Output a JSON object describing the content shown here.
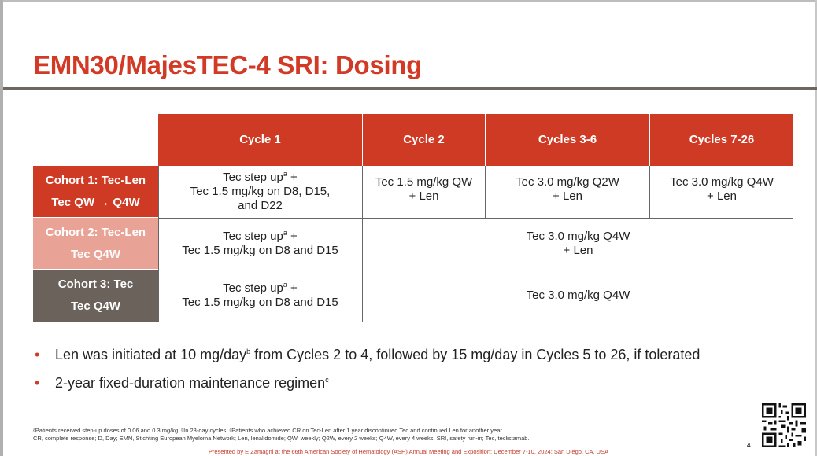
{
  "title": "EMN30/MajesTEC-4 SRI: Dosing",
  "table": {
    "headers": [
      "Cycle 1",
      "Cycle 2",
      "Cycles 3-6",
      "Cycles 7-26"
    ],
    "rows": [
      {
        "label_line1": "Cohort 1: Tec-Len",
        "label_line2": "Tec QW → Q4W",
        "color": "#cf3a24",
        "cycle1_line1": "Tec step up",
        "cycle1_sup": "a",
        "cycle1_plus": " +",
        "cycle1_line2": "Tec 1.5 mg/kg on D8, D15,",
        "cycle1_line3": "and D22",
        "cycle2_line1": "Tec 1.5 mg/kg QW",
        "cycle2_line2": "+ Len",
        "cycles36_line1": "Tec 3.0 mg/kg Q2W",
        "cycles36_line2": "+ Len",
        "cycles726_line1": "Tec 3.0 mg/kg Q4W",
        "cycles726_line2": "+ Len"
      },
      {
        "label_line1": "Cohort 2: Tec-Len",
        "label_line2": "Tec Q4W",
        "color": "#e9a296",
        "cycle1_line1": "Tec step up",
        "cycle1_sup": "a",
        "cycle1_plus": " +",
        "cycle1_line2": "Tec 1.5 mg/kg on D8 and D15",
        "rest_line1": "Tec 3.0 mg/kg Q4W",
        "rest_line2": "+ Len"
      },
      {
        "label_line1": "Cohort 3: Tec",
        "label_line2": "Tec Q4W",
        "color": "#6b625c",
        "cycle1_line1": "Tec step up",
        "cycle1_sup": "a",
        "cycle1_plus": " +",
        "cycle1_line2": "Tec 1.5 mg/kg on D8 and D15",
        "rest_line1": "Tec 3.0 mg/kg Q4W"
      }
    ]
  },
  "bullets": [
    {
      "text_a": "Len was initiated at 10 mg/day",
      "sup": "b",
      "text_b": " from Cycles 2 to 4, followed by 15 mg/day in Cycles 5 to 26, if tolerated"
    },
    {
      "text_a": "2-year fixed-duration maintenance regimen",
      "sup": "c",
      "text_b": ""
    }
  ],
  "footnote_line1": "ᵃPatients received step-up doses of 0.06 and 0.3 mg/kg. ᵇIn 28-day cycles. ᶜPatients who achieved CR on Tec-Len after 1 year discontinued Tec and continued Len for another year.",
  "footnote_line2": "CR, complete response; D, Day; EMN, Stichting European Myeloma Network; Len, lenalidomide; QW, weekly; Q2W, every 2 weeks; Q4W, every 4 weeks; SRI, safety run-in; Tec, teclistamab.",
  "presented_by": "Presented by E Zamagni at the 66th American Society of Hematology (ASH) Annual Meeting and Exposition; December 7-10, 2024; San Diego, CA, USA",
  "page_number": "4",
  "colors": {
    "accent_red": "#d23a26",
    "header_red": "#cf3a24",
    "cohort2_pink": "#e9a296",
    "cohort3_gray": "#6b625c"
  }
}
